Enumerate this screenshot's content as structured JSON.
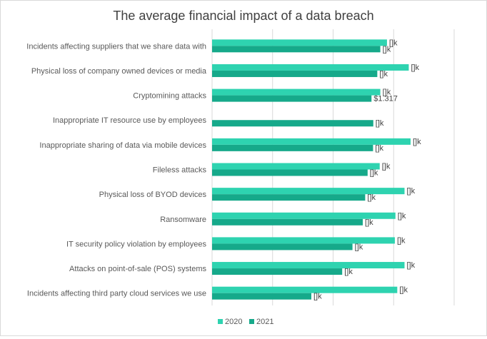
{
  "chart_data": {
    "type": "bar",
    "orientation": "horizontal",
    "title": "The average financial impact of a data breach",
    "categories": [
      "Incidents affecting suppliers that we share data with",
      "Physical loss of company owned devices or media",
      "Cryptomining attacks",
      "Inappropriate IT resource use by employees",
      "Inappropriate sharing of data via mobile devices",
      "Fileless attacks",
      "Physical loss of BYOD devices",
      "Ransomware",
      "IT security policy violation by employees",
      "Attacks on point-of-sale (POS) systems",
      "Incidents affecting third party cloud services we use"
    ],
    "series": [
      {
        "name": "2020",
        "color": "#2ed3b0",
        "values": [
          1445,
          1625,
          1390,
          null,
          1640,
          1385,
          1590,
          1515,
          1510,
          1590,
          1530
        ],
        "labels": [
          "[]k",
          "[]k",
          "[]k",
          "",
          "[]k",
          "[]k",
          "[]k",
          "[]k",
          "[]k",
          "[]k",
          "[]k"
        ]
      },
      {
        "name": "2021",
        "color": "#16a98a",
        "values": [
          1390,
          1365,
          1317,
          1332,
          1330,
          1285,
          1265,
          1245,
          1160,
          1075,
          820
        ],
        "labels": [
          "[]k",
          "[]k",
          "$1.317",
          "[]k",
          "[]k",
          "[]k",
          "[]k",
          "[]k",
          "[]k",
          "[]k",
          "[]k"
        ]
      }
    ],
    "xlim": [
      0,
      2000
    ],
    "gridlines": [
      0,
      500,
      1000,
      1500,
      2000
    ],
    "grid": true,
    "legend_position": "bottom-left"
  }
}
